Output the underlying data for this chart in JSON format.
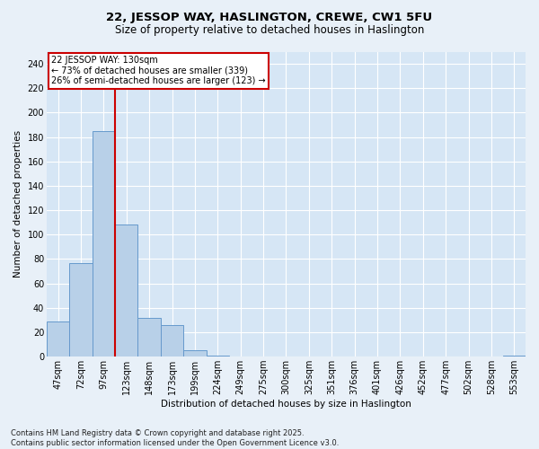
{
  "title": "22, JESSOP WAY, HASLINGTON, CREWE, CW1 5FU",
  "subtitle": "Size of property relative to detached houses in Haslington",
  "xlabel": "Distribution of detached houses by size in Haslington",
  "ylabel": "Number of detached properties",
  "categories": [
    "47sqm",
    "72sqm",
    "97sqm",
    "123sqm",
    "148sqm",
    "173sqm",
    "199sqm",
    "224sqm",
    "249sqm",
    "275sqm",
    "300sqm",
    "325sqm",
    "351sqm",
    "376sqm",
    "401sqm",
    "426sqm",
    "452sqm",
    "477sqm",
    "502sqm",
    "528sqm",
    "553sqm"
  ],
  "values": [
    29,
    77,
    185,
    108,
    32,
    26,
    5,
    1,
    0,
    0,
    0,
    0,
    0,
    0,
    0,
    0,
    0,
    0,
    0,
    0,
    1
  ],
  "bar_color": "#b8d0e8",
  "bar_edge_color": "#6699cc",
  "bg_color": "#d6e6f5",
  "grid_color": "#ffffff",
  "fig_bg_color": "#e8f0f8",
  "vline_color": "#cc0000",
  "annotation_line1": "22 JESSOP WAY: 130sqm",
  "annotation_line2": "← 73% of detached houses are smaller (339)",
  "annotation_line3": "26% of semi-detached houses are larger (123) →",
  "annotation_box_color": "#cc0000",
  "footer": "Contains HM Land Registry data © Crown copyright and database right 2025.\nContains public sector information licensed under the Open Government Licence v3.0.",
  "ylim": [
    0,
    250
  ],
  "yticks": [
    0,
    20,
    40,
    60,
    80,
    100,
    120,
    140,
    160,
    180,
    200,
    220,
    240
  ],
  "title_fontsize": 9.5,
  "subtitle_fontsize": 8.5,
  "ylabel_fontsize": 7.5,
  "xlabel_fontsize": 7.5,
  "tick_fontsize": 7,
  "footer_fontsize": 6,
  "annot_fontsize": 7
}
